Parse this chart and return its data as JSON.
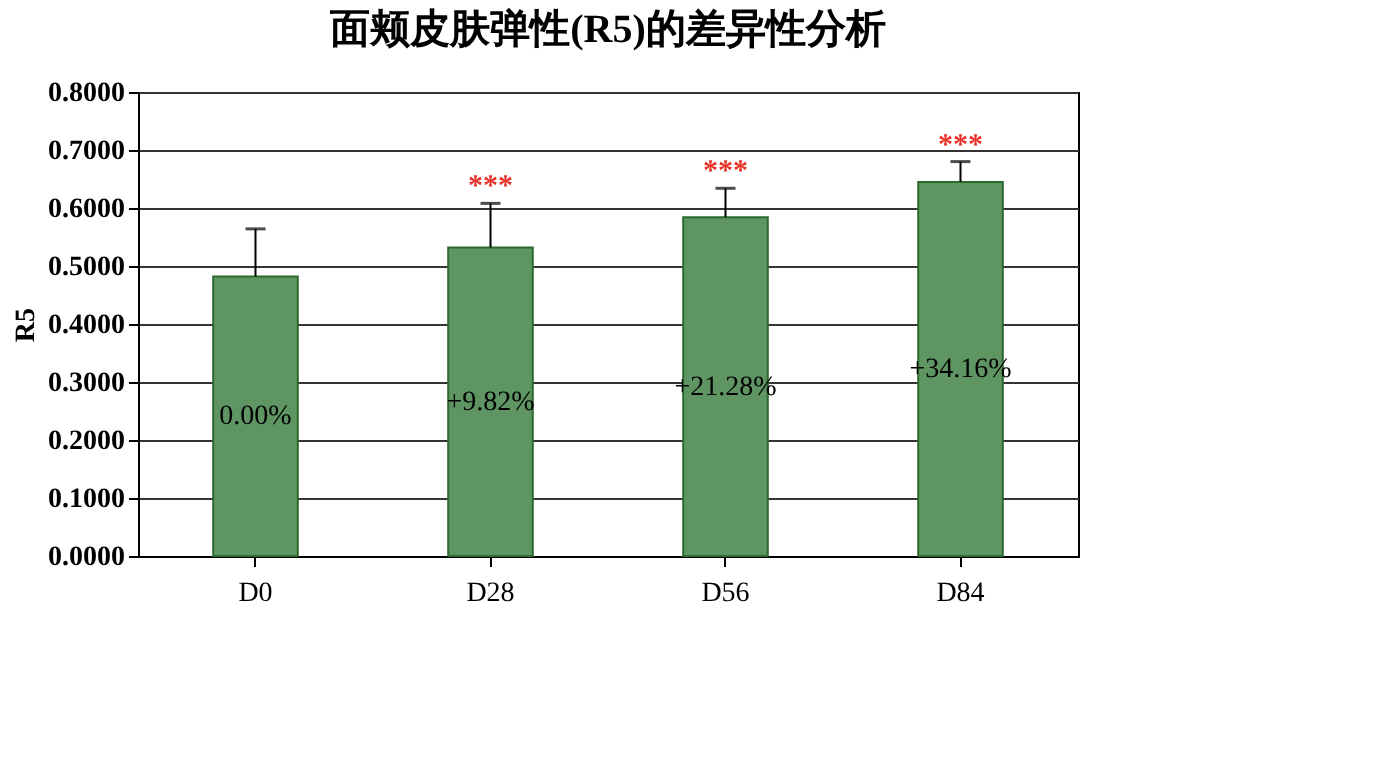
{
  "chart_data": {
    "type": "bar",
    "title": "面颊皮肤弹性(R5)的差异性分析",
    "ylabel": "R5",
    "categories": [
      "D0",
      "D28",
      "D56",
      "D84"
    ],
    "values": [
      0.482,
      0.532,
      0.584,
      0.645
    ],
    "errors": [
      [
        0.482,
        0.564
      ],
      [
        0.532,
        0.608
      ],
      [
        0.584,
        0.634
      ],
      [
        0.645,
        0.68
      ]
    ],
    "color": "#5e9563",
    "annotations": [
      "0.00%",
      "+9.82%",
      "+21.28%",
      "+34.16%",
      "***",
      "***",
      "***"
    ],
    "ylim": [
      0,
      0.8
    ],
    "yticks": [
      {
        "value": 0,
        "label": "0.0000"
      },
      {
        "value": 0.1,
        "label": "0.1000"
      },
      {
        "value": 0.2,
        "label": "0.2000"
      },
      {
        "value": 0.3,
        "label": "0.3000"
      },
      {
        "value": 0.4,
        "label": "0.4000"
      },
      {
        "value": 0.5,
        "label": "0.5000"
      },
      {
        "value": 0.6,
        "label": "0.6000"
      },
      {
        "value": 0.7,
        "label": "0.7000"
      },
      {
        "value": 0.8,
        "label": "0.8000"
      }
    ],
    "grid": "y"
  }
}
